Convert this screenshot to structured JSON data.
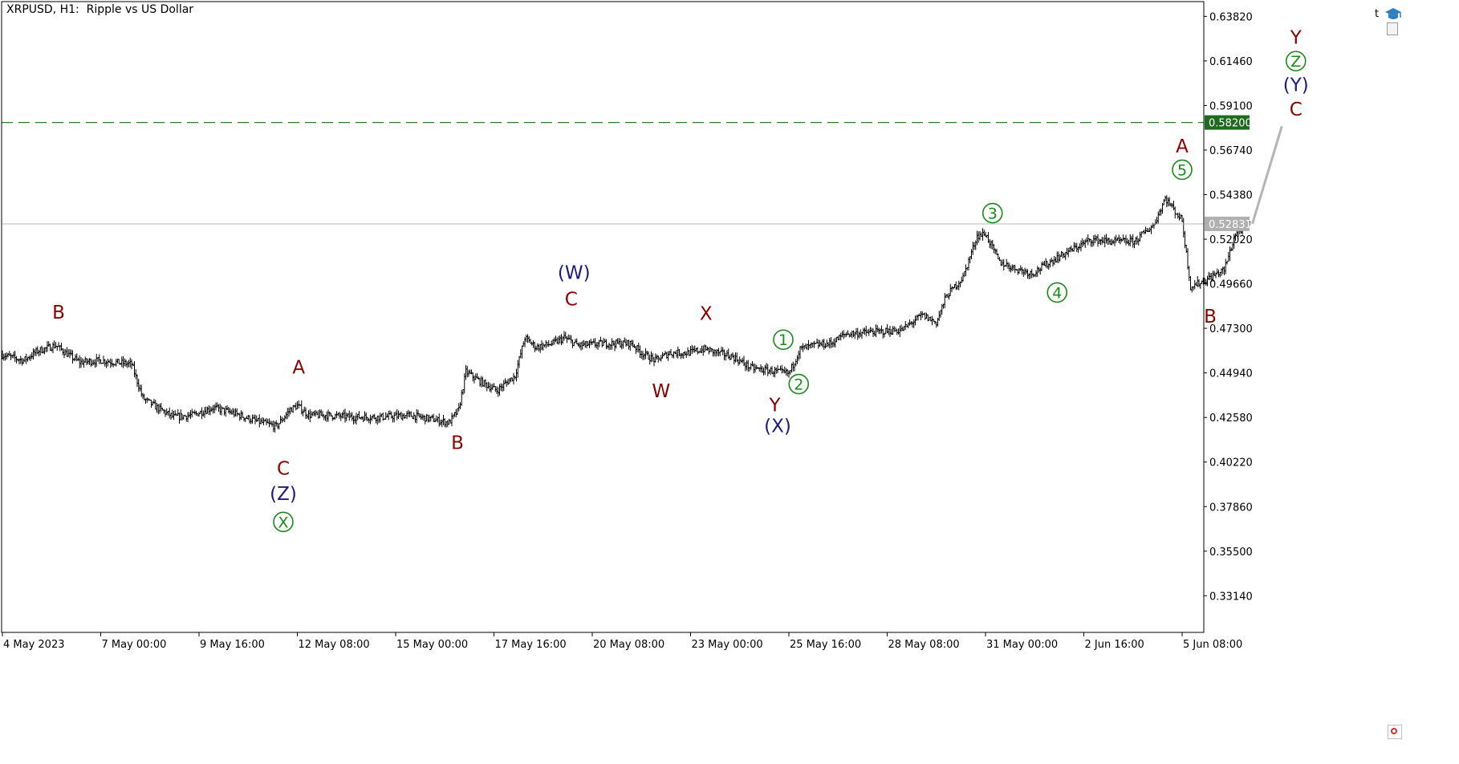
{
  "chart": {
    "title": "XRPUSD, H1:  Ripple vs US Dollar",
    "corner_label": "t"
  },
  "chart_data": {
    "type": "candlestick",
    "symbol": "XRPUSD",
    "timeframe": "H1",
    "description": "Ripple vs US Dollar",
    "ylim": [
      0.312,
      0.646
    ],
    "y_ticks": [
      "0.63820",
      "0.61460",
      "0.59100",
      "0.56740",
      "0.54380",
      "0.52020",
      "0.49660",
      "0.47300",
      "0.44940",
      "0.42580",
      "0.40220",
      "0.37860",
      "0.35500",
      "0.33140"
    ],
    "x_ticks": [
      "4 May 2023",
      "7 May 00:00",
      "9 May 16:00",
      "12 May 08:00",
      "15 May 00:00",
      "17 May 16:00",
      "20 May 08:00",
      "23 May 00:00",
      "25 May 16:00",
      "28 May 08:00",
      "31 May 00:00",
      "2 Jun 16:00",
      "5 Jun 08:00"
    ],
    "x_tick_positions": [
      0,
      70,
      140,
      210,
      280,
      350,
      420,
      490,
      560,
      630,
      700,
      770,
      840
    ],
    "total_bars": 948,
    "price_path": [
      [
        0,
        0.459
      ],
      [
        15,
        0.456
      ],
      [
        25,
        0.461
      ],
      [
        38,
        0.464
      ],
      [
        45,
        0.46
      ],
      [
        55,
        0.455
      ],
      [
        70,
        0.456
      ],
      [
        92,
        0.454
      ],
      [
        100,
        0.436
      ],
      [
        110,
        0.431
      ],
      [
        122,
        0.426
      ],
      [
        135,
        0.427
      ],
      [
        150,
        0.431
      ],
      [
        165,
        0.428
      ],
      [
        180,
        0.424
      ],
      [
        195,
        0.421
      ],
      [
        205,
        0.43
      ],
      [
        210,
        0.432
      ],
      [
        218,
        0.427
      ],
      [
        230,
        0.427
      ],
      [
        250,
        0.426
      ],
      [
        270,
        0.426
      ],
      [
        290,
        0.427
      ],
      [
        305,
        0.425
      ],
      [
        318,
        0.423
      ],
      [
        325,
        0.43
      ],
      [
        330,
        0.45
      ],
      [
        340,
        0.445
      ],
      [
        352,
        0.44
      ],
      [
        365,
        0.448
      ],
      [
        372,
        0.468
      ],
      [
        380,
        0.463
      ],
      [
        392,
        0.465
      ],
      [
        400,
        0.468
      ],
      [
        410,
        0.464
      ],
      [
        430,
        0.465
      ],
      [
        448,
        0.465
      ],
      [
        455,
        0.46
      ],
      [
        465,
        0.456
      ],
      [
        475,
        0.46
      ],
      [
        488,
        0.46
      ],
      [
        500,
        0.462
      ],
      [
        520,
        0.458
      ],
      [
        533,
        0.452
      ],
      [
        542,
        0.451
      ],
      [
        552,
        0.45
      ],
      [
        560,
        0.449
      ],
      [
        568,
        0.462
      ],
      [
        578,
        0.464
      ],
      [
        590,
        0.465
      ],
      [
        600,
        0.47
      ],
      [
        620,
        0.471
      ],
      [
        640,
        0.472
      ],
      [
        655,
        0.48
      ],
      [
        665,
        0.476
      ],
      [
        672,
        0.49
      ],
      [
        684,
        0.5
      ],
      [
        694,
        0.522
      ],
      [
        700,
        0.523
      ],
      [
        710,
        0.508
      ],
      [
        720,
        0.505
      ],
      [
        733,
        0.502
      ],
      [
        750,
        0.51
      ],
      [
        765,
        0.516
      ],
      [
        775,
        0.52
      ],
      [
        790,
        0.519
      ],
      [
        806,
        0.519
      ],
      [
        820,
        0.528
      ],
      [
        828,
        0.542
      ],
      [
        840,
        0.53
      ],
      [
        846,
        0.495
      ],
      [
        855,
        0.498
      ],
      [
        870,
        0.504
      ],
      [
        878,
        0.523
      ],
      [
        888,
        0.5283
      ]
    ],
    "last_price": "0.52831",
    "target_level": "0.58200",
    "projection": {
      "from": [
        890,
        0.5283
      ],
      "to": [
        911,
        0.58
      ]
    },
    "wave_labels": [
      {
        "text": "B",
        "bar": 40,
        "price": 0.4815,
        "color": "dark-red"
      },
      {
        "text": "A",
        "bar": 211,
        "price": 0.4525,
        "color": "dark-red"
      },
      {
        "text": "C",
        "bar": 200,
        "price": 0.399,
        "color": "dark-red"
      },
      {
        "text": "(Z)",
        "bar": 200,
        "price": 0.3855,
        "color": "navy"
      },
      {
        "text": "X",
        "bar": 200,
        "price": 0.3705,
        "color": "green",
        "circled": true
      },
      {
        "text": "B",
        "bar": 324,
        "price": 0.4125,
        "color": "dark-red"
      },
      {
        "text": "(W)",
        "bar": 407,
        "price": 0.5025,
        "color": "navy"
      },
      {
        "text": "C",
        "bar": 405,
        "price": 0.4885,
        "color": "dark-red"
      },
      {
        "text": "W",
        "bar": 469,
        "price": 0.44,
        "color": "dark-red"
      },
      {
        "text": "X",
        "bar": 501,
        "price": 0.481,
        "color": "dark-red"
      },
      {
        "text": "1",
        "bar": 556,
        "price": 0.467,
        "color": "green",
        "circled": true
      },
      {
        "text": "2",
        "bar": 567,
        "price": 0.4435,
        "color": "green",
        "circled": true
      },
      {
        "text": "Y",
        "bar": 550,
        "price": 0.4325,
        "color": "dark-red"
      },
      {
        "text": "(X)",
        "bar": 552,
        "price": 0.4215,
        "color": "navy"
      },
      {
        "text": "3",
        "bar": 705,
        "price": 0.534,
        "color": "green",
        "circled": true
      },
      {
        "text": "4",
        "bar": 751,
        "price": 0.492,
        "color": "green",
        "circled": true
      },
      {
        "text": "A",
        "bar": 840,
        "price": 0.5695,
        "color": "dark-red"
      },
      {
        "text": "5",
        "bar": 840,
        "price": 0.557,
        "color": "green",
        "circled": true
      },
      {
        "text": "B",
        "bar": 860,
        "price": 0.4795,
        "color": "dark-red"
      },
      {
        "text": "C",
        "bar": 921,
        "price": 0.589,
        "color": "dark-red"
      },
      {
        "text": "(Y)",
        "bar": 921,
        "price": 0.602,
        "color": "navy"
      },
      {
        "text": "Z",
        "bar": 921,
        "price": 0.6145,
        "color": "green",
        "circled": true
      },
      {
        "text": "Y",
        "bar": 921,
        "price": 0.627,
        "color": "dark-red"
      }
    ],
    "grid": false,
    "colors": {
      "candles": "#000000",
      "dark-red": "#8b0000",
      "navy": "#1a1a80",
      "green": "#1a8a1a",
      "target_line": "#2a7a2a",
      "target_badge": "#1e6b1e",
      "last_price_line": "#b8b8b8",
      "last_price_badge": "#b0b0b0",
      "projection_line": "#b4b4b4"
    }
  }
}
